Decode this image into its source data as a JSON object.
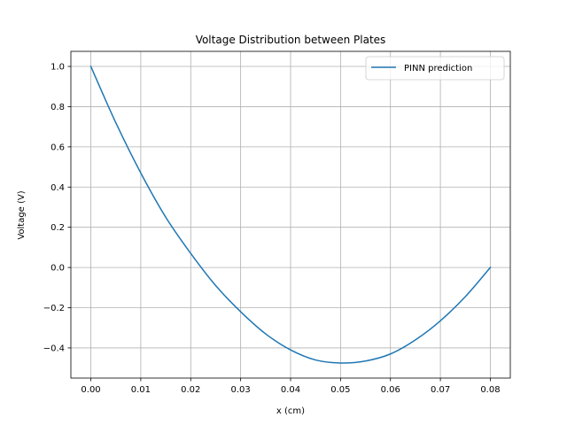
{
  "chart_data": {
    "type": "line",
    "title": "Voltage Distribution between Plates",
    "xlabel": "x (cm)",
    "ylabel": "Voltage (V)",
    "xlim": [
      -0.004,
      0.084
    ],
    "ylim": [
      -0.55,
      1.075
    ],
    "xticks": [
      0.0,
      0.01,
      0.02,
      0.03,
      0.04,
      0.05,
      0.06,
      0.07,
      0.08
    ],
    "xtick_labels": [
      "0.00",
      "0.01",
      "0.02",
      "0.03",
      "0.04",
      "0.05",
      "0.06",
      "0.07",
      "0.08"
    ],
    "yticks": [
      -0.4,
      -0.2,
      0.0,
      0.2,
      0.4,
      0.6,
      0.8,
      1.0
    ],
    "ytick_labels": [
      "−0.4",
      "−0.2",
      "0.0",
      "0.2",
      "0.4",
      "0.6",
      "0.8",
      "1.0"
    ],
    "grid": true,
    "legend_position": "top-right",
    "series": [
      {
        "name": "PINN prediction",
        "color": "#1f77b4",
        "x": [
          0.0,
          0.005,
          0.01,
          0.015,
          0.02,
          0.025,
          0.03,
          0.035,
          0.04,
          0.045,
          0.05,
          0.055,
          0.06,
          0.065,
          0.07,
          0.075,
          0.08
        ],
        "y": [
          1.0,
          0.72,
          0.47,
          0.25,
          0.07,
          -0.09,
          -0.22,
          -0.33,
          -0.41,
          -0.46,
          -0.475,
          -0.465,
          -0.43,
          -0.36,
          -0.265,
          -0.145,
          0.0
        ]
      }
    ]
  }
}
